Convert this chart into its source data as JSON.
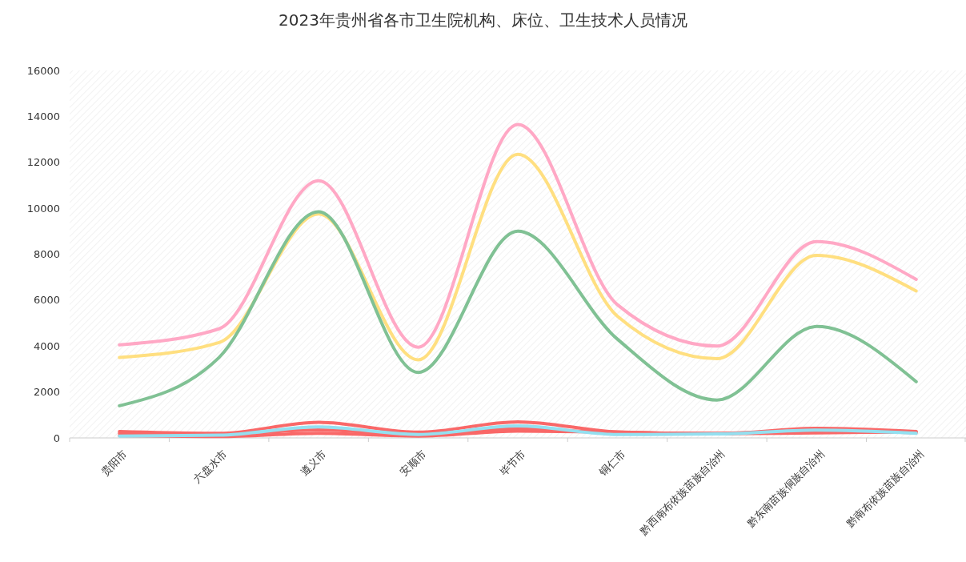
{
  "chart_data": {
    "type": "line",
    "title": "2023年贵州省各市卫生院机构、床位、卫生技术人员情况",
    "categories": [
      "贵阳市",
      "六盘水市",
      "遵义市",
      "安顺市",
      "毕节市",
      "铜仁市",
      "黔西南布依族苗族自治州",
      "黔东南苗族侗族自治州",
      "黔南布依族苗族自治州"
    ],
    "ylim": [
      0,
      16000
    ],
    "yticks": [
      0,
      2000,
      4000,
      6000,
      8000,
      10000,
      12000,
      14000,
      16000
    ],
    "grid": false,
    "marker": "none",
    "line_style": "solid",
    "series": [
      {
        "color": "#ffa8c5",
        "values": [
          4050,
          4750,
          11200,
          3950,
          13650,
          5800,
          4000,
          8550,
          6900
        ]
      },
      {
        "color": "#ffdf80",
        "values": [
          3500,
          4150,
          9750,
          3400,
          12350,
          5300,
          3450,
          7950,
          6400
        ]
      },
      {
        "color": "#80c194",
        "values": [
          1400,
          3500,
          9850,
          2850,
          9000,
          4300,
          1650,
          4850,
          2450
        ]
      },
      {
        "color": "#f96868",
        "values": [
          280,
          200,
          680,
          250,
          700,
          260,
          180,
          420,
          280
        ]
      },
      {
        "color": "#f96868",
        "values": [
          100,
          60,
          200,
          80,
          300,
          250,
          180,
          220,
          260
        ]
      },
      {
        "color": "#f96868",
        "values": [
          200,
          150,
          350,
          120,
          400,
          220,
          200,
          300,
          230
        ]
      },
      {
        "color": "#94e0f0",
        "values": [
          80,
          120,
          480,
          150,
          520,
          150,
          170,
          340,
          200
        ]
      }
    ]
  }
}
